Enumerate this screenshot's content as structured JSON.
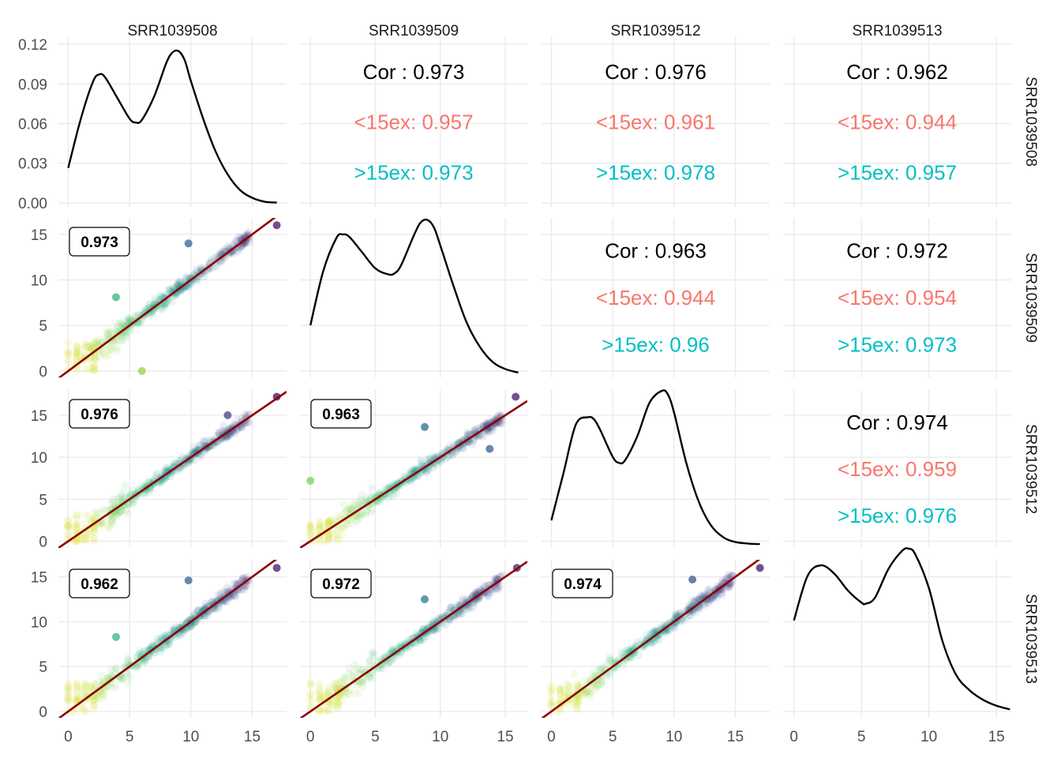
{
  "chart_data": {
    "type": "scatter",
    "title": "",
    "samples": [
      "SRR1039508",
      "SRR1039509",
      "SRR1039512",
      "SRR1039513"
    ],
    "colors": {
      "cor_total": "#000000",
      "cor_low": "#F8766D",
      "cor_high": "#00BFC4",
      "fit_line": "#8B0000",
      "density_line": "#000000",
      "grid": "#EBEBEB"
    },
    "ticks": {
      "density_y": [
        0.0,
        0.03,
        0.06,
        0.09,
        0.12
      ],
      "density_y_labels": [
        "0.00",
        "0.03",
        "0.06",
        "0.09",
        "0.12"
      ],
      "x": [
        0,
        5,
        10,
        15
      ],
      "x_labels": [
        "0",
        "5",
        "10",
        "15"
      ],
      "scatter_y": [
        0,
        5,
        10,
        15
      ],
      "scatter_y_labels": [
        "0",
        "5",
        "10",
        "15"
      ]
    },
    "axes": {
      "columns": [
        {
          "xlim": [
            -0.8,
            17.8
          ]
        },
        {
          "xlim": [
            -0.8,
            16.7
          ]
        },
        {
          "xlim": [
            -0.8,
            17.8
          ]
        },
        {
          "xlim": [
            -0.8,
            16.1
          ]
        }
      ],
      "rows": [
        {
          "ylim": [
            -0.003,
            0.126
          ]
        },
        {
          "ylim": [
            -0.7,
            16.8
          ]
        },
        {
          "ylim": [
            -0.8,
            18.0
          ]
        },
        {
          "ylim": [
            -0.7,
            16.9
          ]
        }
      ]
    },
    "densities": [
      {
        "sample": "SRR1039508",
        "x": [
          0,
          1,
          2,
          2.5,
          3,
          4,
          5,
          5.5,
          6,
          7,
          8,
          8.5,
          9,
          9.5,
          10,
          11,
          12,
          13,
          14,
          15,
          16,
          17
        ],
        "y": [
          0.027,
          0.064,
          0.093,
          0.099,
          0.097,
          0.081,
          0.065,
          0.062,
          0.064,
          0.082,
          0.108,
          0.116,
          0.117,
          0.11,
          0.094,
          0.065,
          0.04,
          0.022,
          0.01,
          0.004,
          0.001,
          0.0003
        ]
      },
      {
        "sample": "SRR1039509",
        "x": [
          0,
          1,
          2,
          2.5,
          3,
          4,
          5,
          6,
          6.5,
          7,
          8,
          8.5,
          9,
          9.5,
          10,
          11,
          12,
          13,
          14,
          15,
          16
        ],
        "y": [
          0.04,
          0.085,
          0.112,
          0.115,
          0.113,
          0.1,
          0.087,
          0.082,
          0.083,
          0.09,
          0.115,
          0.125,
          0.127,
          0.121,
          0.106,
          0.073,
          0.043,
          0.023,
          0.01,
          0.004,
          0.001
        ]
      },
      {
        "sample": "SRR1039512",
        "x": [
          0,
          1,
          2,
          3,
          3.5,
          4,
          5,
          5.5,
          6,
          7,
          8,
          9,
          9.5,
          10,
          11,
          12,
          13,
          14,
          15,
          16,
          17
        ],
        "y": [
          0.02,
          0.06,
          0.1,
          0.106,
          0.104,
          0.095,
          0.073,
          0.068,
          0.07,
          0.09,
          0.118,
          0.128,
          0.125,
          0.11,
          0.068,
          0.036,
          0.016,
          0.006,
          0.002,
          0.0007,
          0.0002
        ]
      },
      {
        "sample": "SRR1039513",
        "x": [
          0,
          1,
          2,
          3,
          4,
          5,
          5.3,
          6,
          7,
          8,
          8.5,
          9,
          10,
          11,
          12,
          13,
          14,
          15,
          16
        ],
        "y": [
          0.078,
          0.115,
          0.124,
          0.117,
          0.103,
          0.093,
          0.092,
          0.097,
          0.121,
          0.136,
          0.138,
          0.133,
          0.105,
          0.061,
          0.033,
          0.02,
          0.012,
          0.007,
          0.004
        ]
      }
    ],
    "correlations": [
      {
        "row": 0,
        "col": 1,
        "total": "Cor : 0.973",
        "low": "<15ex: 0.957",
        "high": ">15ex: 0.973"
      },
      {
        "row": 0,
        "col": 2,
        "total": "Cor : 0.976",
        "low": "<15ex: 0.961",
        "high": ">15ex: 0.978"
      },
      {
        "row": 0,
        "col": 3,
        "total": "Cor : 0.962",
        "low": "<15ex: 0.944",
        "high": ">15ex: 0.957"
      },
      {
        "row": 1,
        "col": 2,
        "total": "Cor : 0.963",
        "low": "<15ex: 0.944",
        "high": ">15ex: 0.96"
      },
      {
        "row": 1,
        "col": 3,
        "total": "Cor : 0.972",
        "low": "<15ex: 0.954",
        "high": ">15ex: 0.973"
      },
      {
        "row": 2,
        "col": 3,
        "total": "Cor : 0.974",
        "low": "<15ex: 0.959",
        "high": ">15ex: 0.976"
      }
    ],
    "scatter_panels": [
      {
        "row": 1,
        "col": 0,
        "badge": "0.973",
        "outliers": [
          [
            3.9,
            8.1
          ],
          [
            6.0,
            0.0
          ],
          [
            9.8,
            14.0
          ],
          [
            17.0,
            16.0
          ]
        ]
      },
      {
        "row": 2,
        "col": 0,
        "badge": "0.976",
        "outliers": [
          [
            17.0,
            17.2
          ],
          [
            13.0,
            15.0
          ]
        ]
      },
      {
        "row": 2,
        "col": 1,
        "badge": "0.963",
        "outliers": [
          [
            0.0,
            7.2
          ],
          [
            8.8,
            13.6
          ],
          [
            15.8,
            17.2
          ],
          [
            13.8,
            11.0
          ]
        ]
      },
      {
        "row": 3,
        "col": 0,
        "badge": "0.962",
        "outliers": [
          [
            3.9,
            8.3
          ],
          [
            9.8,
            14.6
          ],
          [
            17.0,
            16.0
          ]
        ]
      },
      {
        "row": 3,
        "col": 1,
        "badge": "0.972",
        "outliers": [
          [
            15.9,
            16.0
          ],
          [
            8.8,
            12.5
          ]
        ]
      },
      {
        "row": 3,
        "col": 2,
        "badge": "0.974",
        "outliers": [
          [
            17.0,
            16.0
          ],
          [
            11.5,
            14.7
          ]
        ]
      }
    ]
  }
}
